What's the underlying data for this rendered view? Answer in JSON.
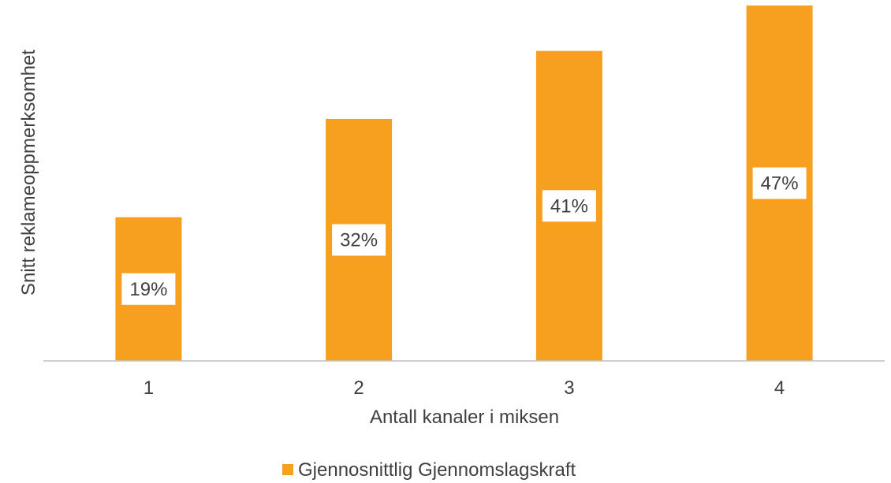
{
  "chart_data": {
    "type": "bar",
    "categories": [
      "1",
      "2",
      "3",
      "4"
    ],
    "series": [
      {
        "name": "Gjennosnittlig Gjennomslagskraft",
        "values": [
          19,
          32,
          41,
          47
        ],
        "data_labels": [
          "19%",
          "32%",
          "41%",
          "47%"
        ],
        "color": "#F7A01F"
      }
    ],
    "title": "",
    "xlabel": "Antall kanaler i miksen",
    "ylabel": "Snitt reklameoppmerksomhet",
    "ylim": [
      0,
      47
    ],
    "grid": false,
    "legend_position": "bottom"
  },
  "colors": {
    "bar": "#F7A01F",
    "axis": "#BFBFBF",
    "text": "#404040",
    "label_box": "#FFFFFF"
  }
}
